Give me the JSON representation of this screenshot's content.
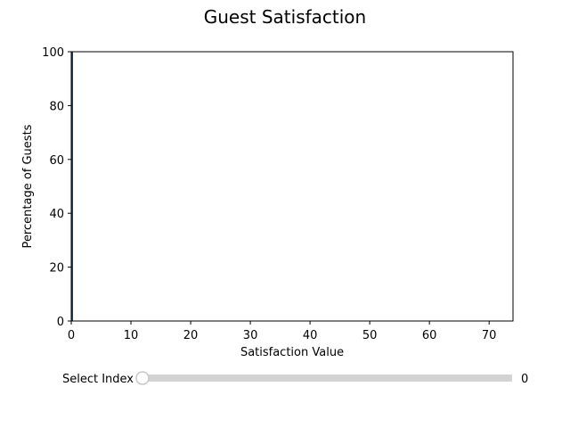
{
  "chart_data": {
    "type": "bar",
    "title": "Guest Satisfaction",
    "xlabel": "Satisfaction Value",
    "ylabel": "Percentage of Guests",
    "xlim": [
      0,
      74
    ],
    "ylim": [
      0,
      100
    ],
    "xticks": [
      0,
      10,
      20,
      30,
      40,
      50,
      60,
      70
    ],
    "yticks": [
      0,
      20,
      40,
      60,
      80,
      100
    ],
    "categories": [
      0
    ],
    "values": [
      100
    ],
    "bar_color": "#1f3f6e",
    "grid": false
  },
  "slider": {
    "label": "Select Index",
    "value": 0,
    "value_text": "0",
    "min": 0,
    "max": 100,
    "track_color": "#d3d3d3",
    "handle_color": "#ffffff"
  }
}
